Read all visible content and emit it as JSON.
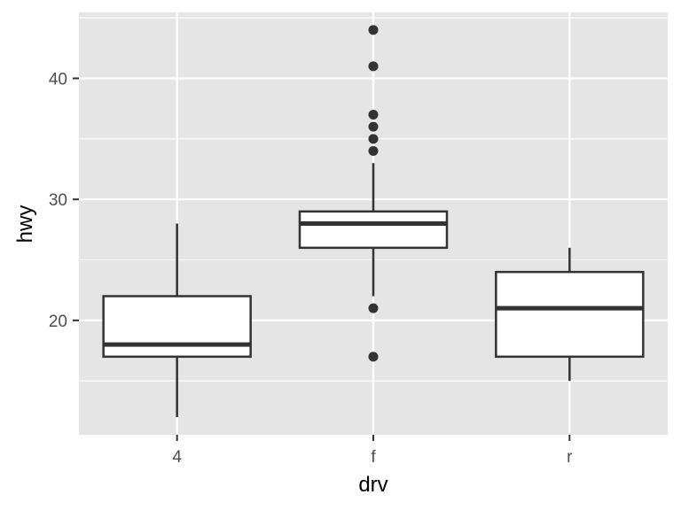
{
  "chart_data": {
    "type": "boxplot",
    "xlabel": "drv",
    "ylabel": "hwy",
    "ylim": [
      10.55,
      45.45
    ],
    "y_ticks": [
      20,
      30,
      40
    ],
    "y_minor_ticks": [
      15,
      25,
      35,
      45
    ],
    "categories": [
      "4",
      "f",
      "r"
    ],
    "boxes": [
      {
        "category": "4",
        "whisker_low": 12,
        "q1": 17,
        "median": 18,
        "q3": 22,
        "whisker_high": 28,
        "outliers": []
      },
      {
        "category": "f",
        "whisker_low": 22,
        "q1": 26,
        "median": 28,
        "q3": 29,
        "whisker_high": 33,
        "outliers": [
          17,
          21,
          34,
          35,
          36,
          37,
          41,
          44
        ]
      },
      {
        "category": "r",
        "whisker_low": 15,
        "q1": 17,
        "median": 21,
        "q3": 24,
        "whisker_high": 26,
        "outliers": []
      }
    ],
    "grid": true,
    "legend": "none",
    "colors": {
      "panel": "#e5e5e5",
      "grid": "#ffffff",
      "box_fill": "#ffffff",
      "box_line": "#333333",
      "tick_text": "#4d4d4d",
      "title_text": "#000000"
    }
  }
}
